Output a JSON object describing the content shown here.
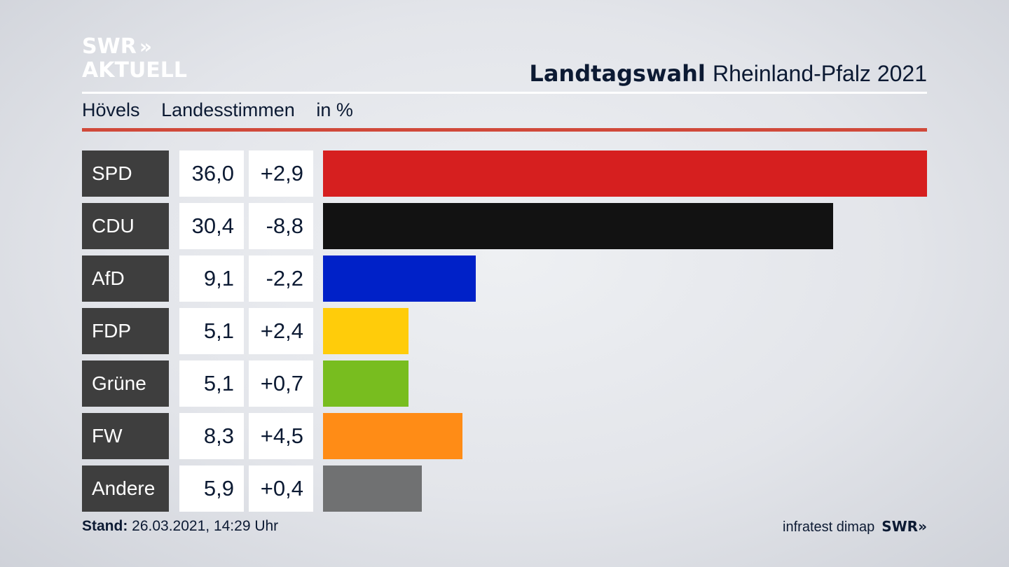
{
  "logo": {
    "line1": "SWR",
    "arrows": "»",
    "line2": "AKTUELL"
  },
  "header": {
    "title_bold": "Landtagswahl",
    "title_rest": "Rheinland-Pfalz 2021"
  },
  "subheader": {
    "place": "Hövels",
    "vote_type": "Landesstimmen",
    "unit": "in %"
  },
  "colors": {
    "rule": "#d0493a",
    "party_label_bg": "#3e3e3e"
  },
  "chart_data": {
    "type": "bar",
    "categories": [
      "SPD",
      "CDU",
      "AfD",
      "FDP",
      "Grüne",
      "FW",
      "Andere"
    ],
    "values": [
      36.0,
      30.4,
      9.1,
      5.1,
      5.1,
      8.3,
      5.9
    ],
    "value_labels": [
      "36,0",
      "30,4",
      "9,1",
      "5,1",
      "5,1",
      "8,3",
      "5,9"
    ],
    "diffs": [
      2.9,
      -8.8,
      -2.2,
      2.4,
      0.7,
      4.5,
      0.4
    ],
    "diff_labels": [
      "+2,9",
      "-8,8",
      "-2,2",
      "+2,4",
      "+0,7",
      "+4,5",
      "+0,4"
    ],
    "bar_colors": [
      "#d61f1f",
      "#121212",
      "#0021c8",
      "#ffcc0a",
      "#78bd1f",
      "#ff8c16",
      "#707172"
    ],
    "orientation": "horizontal",
    "xlim": [
      0,
      36.0
    ]
  },
  "footer": {
    "stand_label": "Stand:",
    "stand_value": "26.03.2021, 14:29 Uhr",
    "source": "infratest dimap",
    "brand": "SWR",
    "brand_arrows": "»"
  }
}
